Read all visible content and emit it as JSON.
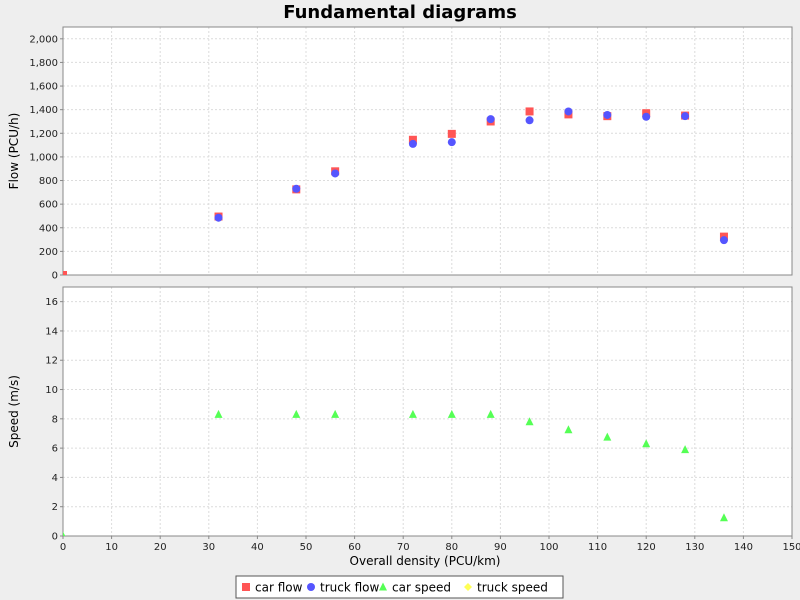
{
  "colors": {
    "background": "#eeeeee",
    "plot_background": "#ffffff",
    "gridline": "#dcdcdc",
    "axis": "#888888",
    "car_flow": "#ff5555",
    "truck_flow": "#5555ff",
    "car_speed": "#55ff55",
    "truck_speed": "#ffff55"
  },
  "chart_data": {
    "type": "scatter",
    "title": "Fundamental diagrams",
    "xlabel": "Overall density (PCU/km)",
    "xlim": [
      0,
      150
    ],
    "x_ticks": [
      0,
      10,
      20,
      30,
      40,
      50,
      60,
      70,
      80,
      90,
      100,
      110,
      120,
      130,
      140,
      150
    ],
    "x_tick_labels": [
      "0",
      "10",
      "20",
      "30",
      "40",
      "50",
      "60",
      "70",
      "80",
      "90",
      "100",
      "110",
      "120",
      "130",
      "140",
      "150"
    ],
    "grid": true,
    "legend_position": "bottom-center",
    "panels": [
      {
        "ylabel": "Flow (PCU/h)",
        "ylim": [
          0,
          2100
        ],
        "y_ticks": [
          0,
          200,
          400,
          600,
          800,
          1000,
          1200,
          1400,
          1600,
          1800,
          2000
        ],
        "y_tick_labels": [
          "0",
          "200",
          "400",
          "600",
          "800",
          "1,000",
          "1,200",
          "1,400",
          "1,600",
          "1,800",
          "2,000"
        ],
        "series": [
          {
            "name": "car flow",
            "marker": "square",
            "color": "#ff5555",
            "points": [
              [
                0,
                0
              ],
              [
                32,
                495
              ],
              [
                48,
                725
              ],
              [
                56,
                878
              ],
              [
                72,
                1145
              ],
              [
                80,
                1195
              ],
              [
                88,
                1300
              ],
              [
                96,
                1385
              ],
              [
                104,
                1360
              ],
              [
                112,
                1345
              ],
              [
                120,
                1370
              ],
              [
                128,
                1350
              ],
              [
                136,
                325
              ]
            ]
          },
          {
            "name": "truck flow",
            "marker": "circle",
            "color": "#5555ff",
            "points": [
              [
                32,
                485
              ],
              [
                48,
                730
              ],
              [
                56,
                860
              ],
              [
                72,
                1110
              ],
              [
                80,
                1125
              ],
              [
                88,
                1320
              ],
              [
                96,
                1310
              ],
              [
                104,
                1385
              ],
              [
                112,
                1355
              ],
              [
                120,
                1340
              ],
              [
                128,
                1345
              ],
              [
                136,
                295
              ]
            ]
          }
        ]
      },
      {
        "ylabel": "Speed (m/s)",
        "ylim": [
          0,
          17
        ],
        "y_ticks": [
          0,
          2,
          4,
          6,
          8,
          10,
          12,
          14,
          16
        ],
        "y_tick_labels": [
          "0",
          "2",
          "4",
          "6",
          "8",
          "10",
          "12",
          "14",
          "16"
        ],
        "series": [
          {
            "name": "car speed",
            "marker": "triangle",
            "color": "#55ff55",
            "points": [
              [
                0,
                0
              ],
              [
                32,
                8.3
              ],
              [
                48,
                8.3
              ],
              [
                56,
                8.3
              ],
              [
                72,
                8.3
              ],
              [
                80,
                8.3
              ],
              [
                88,
                8.3
              ],
              [
                96,
                7.8
              ],
              [
                104,
                7.25
              ],
              [
                112,
                6.75
              ],
              [
                120,
                6.3
              ],
              [
                128,
                5.9
              ],
              [
                136,
                1.25
              ]
            ]
          },
          {
            "name": "truck speed",
            "marker": "diamond",
            "color": "#ffff55",
            "points": []
          }
        ]
      }
    ],
    "legend": [
      {
        "label": "car flow",
        "marker": "square",
        "color": "#ff5555"
      },
      {
        "label": "truck flow",
        "marker": "circle",
        "color": "#5555ff"
      },
      {
        "label": "car speed",
        "marker": "triangle",
        "color": "#55ff55"
      },
      {
        "label": "truck speed",
        "marker": "diamond",
        "color": "#ffff55"
      }
    ]
  }
}
